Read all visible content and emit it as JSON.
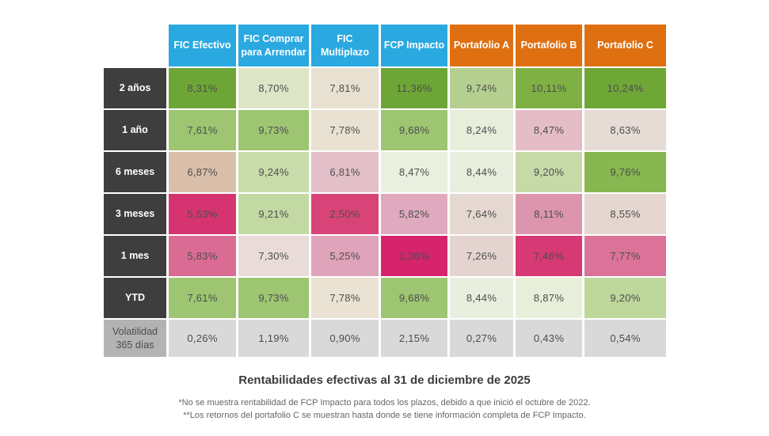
{
  "title": "Rentabilidades efectivas al 31 de diciembre de 2025",
  "footnotes": [
    "*No se muestra rentabilidad de FCP Impacto para todos los plazos, debido a que inició el octubre de 2022.",
    "**Los retornos del portafolio C se muestran hasta donde se tiene información completa de FCP Impacto."
  ],
  "colors": {
    "fic_header_bg": "#2AA9E0",
    "portfolio_header_bg": "#DF7012",
    "period_header_bg": "#3E3E3E",
    "volatility_header_bg": "#B3B3B3",
    "volatility_cell_bg": "#D9D9D9",
    "header_text": "#FFFFFF",
    "cell_text": "#4D4D4D"
  },
  "table": {
    "columns": [
      {
        "label": "FIC Efectivo",
        "group": "fic"
      },
      {
        "label": "FIC Comprar para Arrendar",
        "group": "fic"
      },
      {
        "label": "FIC Multiplazo",
        "group": "fic"
      },
      {
        "label": "FCP Impacto",
        "group": "fic"
      },
      {
        "label": "Portafolio A",
        "group": "portfolio"
      },
      {
        "label": "Portafolio B",
        "group": "portfolio"
      },
      {
        "label": "Portafolio C",
        "group": "portfolio"
      }
    ],
    "rows": [
      {
        "label": "2 años",
        "type": "period",
        "cells": [
          {
            "value": "8,31%",
            "bg": "#6DA637"
          },
          {
            "value": "8,70%",
            "bg": "#DCE5C6"
          },
          {
            "value": "7,81%",
            "bg": "#E8E1D2"
          },
          {
            "value": "11,36%",
            "bg": "#6DA637"
          },
          {
            "value": "9,74%",
            "bg": "#B5CF90"
          },
          {
            "value": "10,11%",
            "bg": "#7EB044"
          },
          {
            "value": "10,24%",
            "bg": "#6FA737"
          }
        ]
      },
      {
        "label": "1 año",
        "type": "period",
        "cells": [
          {
            "value": "7,61%",
            "bg": "#9DC572"
          },
          {
            "value": "9,73%",
            "bg": "#9DC572"
          },
          {
            "value": "7,78%",
            "bg": "#E9E2D3"
          },
          {
            "value": "9,68%",
            "bg": "#9DC572"
          },
          {
            "value": "8,24%",
            "bg": "#E8EEDC"
          },
          {
            "value": "8,47%",
            "bg": "#E5BDC7"
          },
          {
            "value": "8,63%",
            "bg": "#E7DCD5"
          }
        ]
      },
      {
        "label": "6 meses",
        "type": "period",
        "cells": [
          {
            "value": "6,87%",
            "bg": "#D9BFA9"
          },
          {
            "value": "9,24%",
            "bg": "#C8DCAB"
          },
          {
            "value": "6,81%",
            "bg": "#E3C0C9"
          },
          {
            "value": "8,47%",
            "bg": "#EAF0E0"
          },
          {
            "value": "8,44%",
            "bg": "#E9EFDE"
          },
          {
            "value": "9,20%",
            "bg": "#C5DAA7"
          },
          {
            "value": "9,76%",
            "bg": "#88B751"
          }
        ]
      },
      {
        "label": "3 meses",
        "type": "period",
        "cells": [
          {
            "value": "5,53%",
            "bg": "#D63471"
          },
          {
            "value": "9,21%",
            "bg": "#C3D9A3"
          },
          {
            "value": "2,50%",
            "bg": "#D84478"
          },
          {
            "value": "5,82%",
            "bg": "#DFA9BE"
          },
          {
            "value": "7,64%",
            "bg": "#E5D8D0"
          },
          {
            "value": "8,11%",
            "bg": "#DD95AE"
          },
          {
            "value": "8,55%",
            "bg": "#E5D6CF"
          }
        ]
      },
      {
        "label": "1 mes",
        "type": "period",
        "cells": [
          {
            "value": "5,83%",
            "bg": "#DA6C94"
          },
          {
            "value": "7,30%",
            "bg": "#E9DBD7"
          },
          {
            "value": "5,25%",
            "bg": "#DFA3BA"
          },
          {
            "value": "1,36%",
            "bg": "#D5246B"
          },
          {
            "value": "7,26%",
            "bg": "#E4D4CF"
          },
          {
            "value": "7,46%",
            "bg": "#D63973"
          },
          {
            "value": "7,77%",
            "bg": "#DB7298"
          }
        ]
      },
      {
        "label": "YTD",
        "type": "period",
        "cells": [
          {
            "value": "7,61%",
            "bg": "#9DC572"
          },
          {
            "value": "9,73%",
            "bg": "#9DC572"
          },
          {
            "value": "7,78%",
            "bg": "#EAE3D4"
          },
          {
            "value": "9,68%",
            "bg": "#9DC572"
          },
          {
            "value": "8,44%",
            "bg": "#E9EFDE"
          },
          {
            "value": "8,87%",
            "bg": "#E7EEDA"
          },
          {
            "value": "9,20%",
            "bg": "#BED79B"
          }
        ]
      },
      {
        "label": "Volatilidad 365 días",
        "type": "volatility",
        "cells": [
          {
            "value": "0,26%",
            "bg": "#D9D9D9"
          },
          {
            "value": "1,19%",
            "bg": "#D9D9D9"
          },
          {
            "value": "0,90%",
            "bg": "#D9D9D9"
          },
          {
            "value": "2,15%",
            "bg": "#D9D9D9"
          },
          {
            "value": "0,27%",
            "bg": "#D9D9D9"
          },
          {
            "value": "0,43%",
            "bg": "#D9D9D9"
          },
          {
            "value": "0,54%",
            "bg": "#D9D9D9"
          }
        ]
      }
    ]
  },
  "chart_data": {
    "type": "heatmap",
    "title": "Rentabilidades efectivas al 31 de diciembre de 2025",
    "columns": [
      "FIC Efectivo",
      "FIC Comprar para Arrendar",
      "FIC Multiplazo",
      "FCP Impacto",
      "Portafolio A",
      "Portafolio B",
      "Portafolio C"
    ],
    "rows": [
      "2 años",
      "1 año",
      "6 meses",
      "3 meses",
      "1 mes",
      "YTD",
      "Volatilidad 365 días"
    ],
    "values_pct": [
      [
        8.31,
        8.7,
        7.81,
        11.36,
        9.74,
        10.11,
        10.24
      ],
      [
        7.61,
        9.73,
        7.78,
        9.68,
        8.24,
        8.47,
        8.63
      ],
      [
        6.87,
        9.24,
        6.81,
        8.47,
        8.44,
        9.2,
        9.76
      ],
      [
        5.53,
        9.21,
        2.5,
        5.82,
        7.64,
        8.11,
        8.55
      ],
      [
        5.83,
        7.3,
        5.25,
        1.36,
        7.26,
        7.46,
        7.77
      ],
      [
        7.61,
        9.73,
        7.78,
        9.68,
        8.44,
        8.87,
        9.2
      ],
      [
        0.26,
        1.19,
        0.9,
        2.15,
        0.27,
        0.43,
        0.54
      ]
    ],
    "color_scale": "green = higher return, pink/magenta = lower return, gray = volatility row",
    "legend_position": "none",
    "grid": false
  }
}
